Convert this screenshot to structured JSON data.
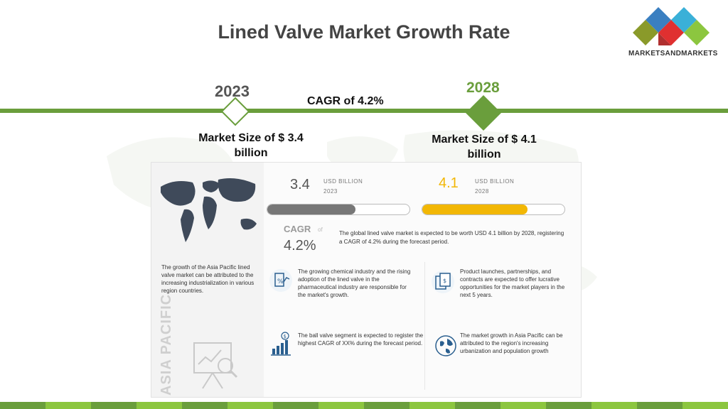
{
  "title": "Lined Valve Market Growth Rate",
  "logo": {
    "text": "MARKETSANDMARKETS"
  },
  "timeline": {
    "year_start": "2023",
    "year_end": "2028",
    "cagr": "CAGR of 4.2%",
    "market_start": "Market Size of $ 3.4 billion",
    "market_end": "Market Size of $ 4.1 billion"
  },
  "infographic": {
    "v2023": "3.4",
    "unit2023": "USD BILLION",
    "year2023": "2023",
    "v2028": "4.1",
    "unit2028": "USD BILLION",
    "year2028": "2028",
    "progress2023": 0.62,
    "progress2028": 0.74,
    "cagr_label": "CAGR",
    "cagr_of": "of",
    "cagr_value": "4.2%",
    "summary": "The global lined valve market is expected to be worth USD 4.1 billion by 2028, registering a CAGR of 4.2% during the forecast period.",
    "region_note": "The growth of the Asia Pacific lined valve market can be attributed to the increasing industrialization in various region countries.",
    "region_label": "ASIA PACIFIC",
    "notes": [
      "The growing chemical industry and the rising adoption of the lined valve in the pharmaceutical industry are responsible for the market's growth.",
      "Product launches, partnerships, and contracts are expected to offer lucrative opportunities for the market players in the next 5 years.",
      "The ball valve segment is expected to register the highest CAGR of XX% during the forecast period.",
      "The market growth in Asia Pacific can be attributed to the region's increasing urbanization and population growth"
    ]
  },
  "colors": {
    "green": "#6a9e3c",
    "yellow": "#f2b705",
    "gray_bar": "#777777"
  }
}
